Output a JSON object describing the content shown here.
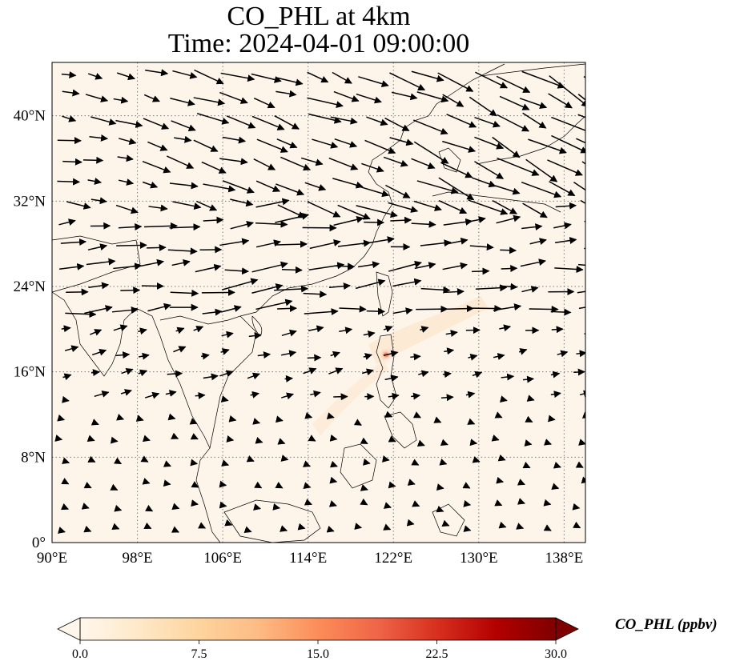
{
  "title": {
    "line1": "CO_PHL at 4km",
    "line2": "Time: 2024-04-01 09:00:00"
  },
  "colors": {
    "background_field": "#fdf5ea",
    "plume": "#fde3c6",
    "hotspot": "#f3936a",
    "coastline": "#000000",
    "gridline": "#7a7a7a",
    "wind_arrow": "#000000"
  },
  "map": {
    "projection": "PlateCarree",
    "lon_range": [
      90,
      140
    ],
    "lat_range": [
      0,
      45
    ],
    "gridlines": true,
    "lon_ticks": [
      {
        "value": 90,
        "label": "90°E"
      },
      {
        "value": 98,
        "label": "98°E"
      },
      {
        "value": 106,
        "label": "106°E"
      },
      {
        "value": 114,
        "label": "114°E"
      },
      {
        "value": 122,
        "label": "122°E"
      },
      {
        "value": 130,
        "label": "130°E"
      },
      {
        "value": 138,
        "label": "138°E"
      }
    ],
    "lat_ticks": [
      {
        "value": 0,
        "label": "0°"
      },
      {
        "value": 8,
        "label": "8°N"
      },
      {
        "value": 16,
        "label": "16°N"
      },
      {
        "value": 24,
        "label": "24°N"
      },
      {
        "value": 32,
        "label": "32°N"
      },
      {
        "value": 40,
        "label": "40°N"
      }
    ],
    "hotspot": {
      "lon": 121.3,
      "lat": 17.6,
      "value": 12
    }
  },
  "colorbar": {
    "label": "CO_PHL (ppbv)",
    "cmap": "OrRd",
    "min": 0.0,
    "max": 30.0,
    "extend": "both",
    "ticks": [
      "0.0",
      "7.5",
      "15.0",
      "22.5",
      "30.0"
    ],
    "stops": [
      "#fff7ec",
      "#fee8c8",
      "#fdd49e",
      "#fdbb84",
      "#fc8d59",
      "#ef6548",
      "#d7301f",
      "#b30000",
      "#7f0000"
    ]
  }
}
